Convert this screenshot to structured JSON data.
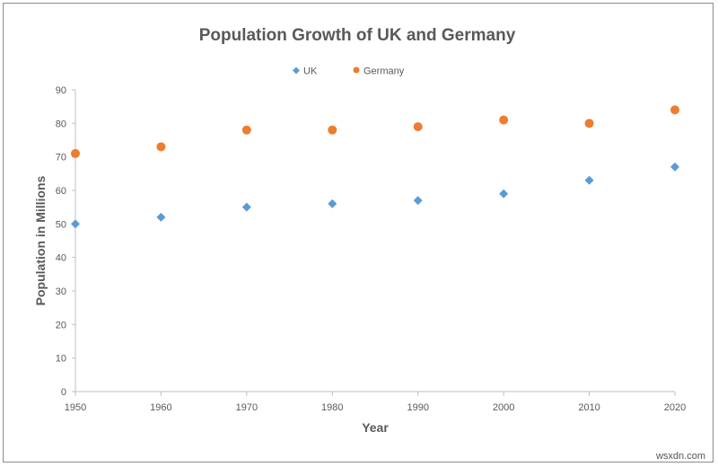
{
  "chart_data": {
    "type": "scatter",
    "title": "Population Growth of UK and Germany",
    "xlabel": "Year",
    "ylabel": "Population in Millions",
    "x": [
      1950,
      1960,
      1970,
      1980,
      1990,
      2000,
      2010,
      2020
    ],
    "xlim": [
      1950,
      2020
    ],
    "xticks": [
      "1950",
      "1960",
      "1970",
      "1980",
      "1990",
      "2000",
      "2010",
      "2020"
    ],
    "ylim": [
      0,
      90
    ],
    "yticks": [
      "0",
      "10",
      "20",
      "30",
      "40",
      "50",
      "60",
      "70",
      "80",
      "90"
    ],
    "grid": false,
    "legend_position": "top",
    "series": [
      {
        "name": "UK",
        "marker": "diamond",
        "color": "#5b9bd5",
        "values": [
          50,
          52,
          55,
          56,
          57,
          59,
          63,
          67
        ]
      },
      {
        "name": "Germany",
        "marker": "circle",
        "color": "#ed7d31",
        "values": [
          71,
          73,
          78,
          78,
          79,
          81,
          80,
          84
        ]
      }
    ]
  },
  "watermark": "wsxdn.com"
}
